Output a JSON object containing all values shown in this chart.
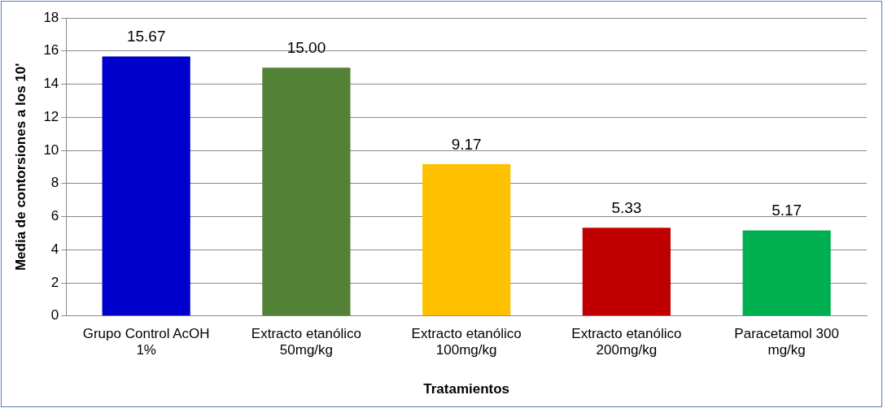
{
  "chart_data": {
    "type": "bar",
    "xlabel": "Tratamientos",
    "ylabel": "Media de contorsiones a los 10'",
    "categories": [
      "Grupo Control AcOH 1%",
      "Extracto etanólico 50mg/kg",
      "Extracto etanólico 100mg/kg",
      "Extracto etanólico 200mg/kg",
      "Paracetamol 300 mg/kg"
    ],
    "values": [
      15.67,
      15.0,
      9.17,
      5.33,
      5.17
    ],
    "colors": [
      "#0000cc",
      "#538135",
      "#ffc000",
      "#c00000",
      "#00b050"
    ],
    "value_labels": [
      "15.67",
      "15.00",
      "9.17",
      "5.33",
      "5.17"
    ],
    "ylim": [
      0,
      18
    ],
    "yticks": [
      0,
      2,
      4,
      6,
      8,
      10,
      12,
      14,
      16,
      18
    ],
    "grid": "y",
    "legend": false
  }
}
